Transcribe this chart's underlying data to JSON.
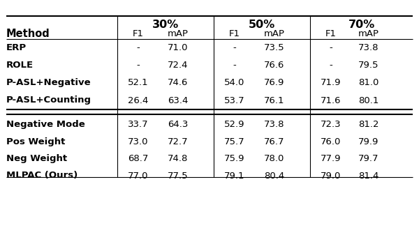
{
  "header_groups": [
    "30%",
    "50%",
    "70%"
  ],
  "subheaders": [
    "F1",
    "mAP"
  ],
  "method_col_label": "Method",
  "rows_group1": [
    [
      "ERP",
      "-",
      "71.0",
      "-",
      "73.5",
      "-",
      "73.8"
    ],
    [
      "ROLE",
      "-",
      "72.4",
      "-",
      "76.6",
      "-",
      "79.5"
    ],
    [
      "P-ASL+Negative",
      "52.1",
      "74.6",
      "54.0",
      "76.9",
      "71.9",
      "81.0"
    ],
    [
      "P-ASL+Counting",
      "26.4",
      "63.4",
      "53.7",
      "76.1",
      "71.6",
      "80.1"
    ]
  ],
  "rows_group2": [
    [
      "Negative Mode",
      "33.7",
      "64.3",
      "52.9",
      "73.8",
      "72.3",
      "81.2"
    ],
    [
      "Pos Weight",
      "73.0",
      "72.7",
      "75.7",
      "76.7",
      "76.0",
      "79.9"
    ],
    [
      "Neg Weight",
      "68.7",
      "74.8",
      "75.9",
      "78.0",
      "77.9",
      "79.7"
    ],
    [
      "MLPAC (Ours)",
      "77.0",
      "77.5",
      "79.1",
      "80.4",
      "79.0",
      "81.4"
    ]
  ],
  "bg_color": "#ffffff",
  "text_color": "#000000",
  "fontsize": 9.5,
  "header_fontsize": 10.5
}
